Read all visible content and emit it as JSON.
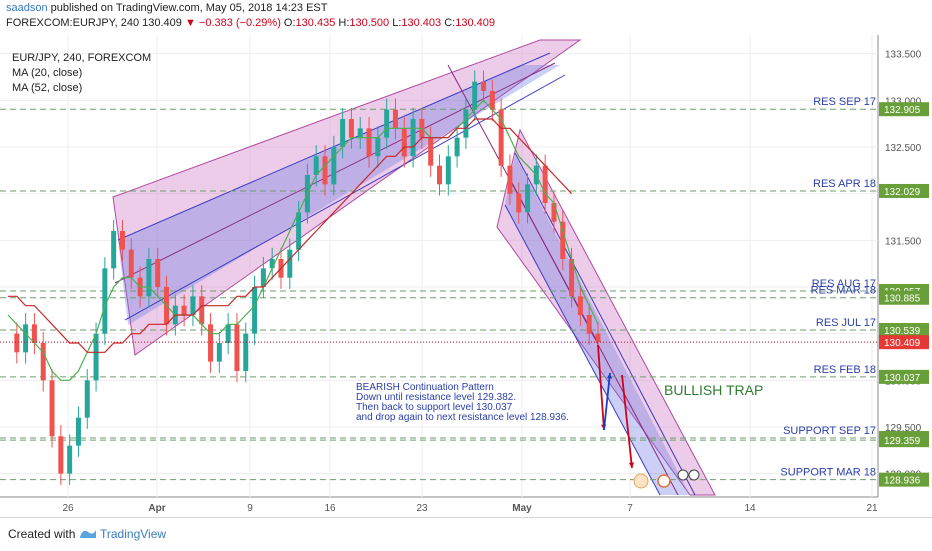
{
  "header": {
    "user": "saadson",
    "published": "published on TradingView.com, May 05, 2018 14:23 EST",
    "symbol": "FOREXCOM:EURJPY, 240",
    "last": "130.409",
    "change_arrow": "▼",
    "change": "−0.383 (−0.29%)",
    "open_label": "O:",
    "open": "130.435",
    "high_label": "H:",
    "high": "130.500",
    "low_label": "L:",
    "low": "130.403",
    "close_label": "C:",
    "close": "130.409"
  },
  "legend": {
    "title": "EUR/JPY, 240, FOREXCOM",
    "ma1": "MA (20, close)",
    "ma2": "MA (52, close)"
  },
  "footer": {
    "created_with": "Created with",
    "brand": "TradingView"
  },
  "colors": {
    "up": "#26a69a",
    "down": "#ef5350",
    "ma20": "#4caf50",
    "ma52": "#c62828",
    "level_line": "#6e9e6e",
    "label_text": "#2a3fa8",
    "channel_fill": "rgba(200,110,190,0.35)",
    "channel_mid": "rgba(110,120,230,0.35)"
  },
  "chart_data": {
    "type": "line",
    "title": "EUR/JPY, 240, FOREXCOM",
    "x_ticks": [
      "26",
      "Apr",
      "9",
      "16",
      "23",
      "May",
      "7",
      "14",
      "21"
    ],
    "y_ticks": [
      133.5,
      133.0,
      132.5,
      132.0,
      131.5,
      131.0,
      130.5,
      130.0,
      129.5,
      129.0
    ],
    "ylim": [
      128.75,
      133.7
    ],
    "current_price": 130.409,
    "levels": [
      {
        "name": "RES SEP 17",
        "value": 132.905
      },
      {
        "name": "RES APR 18",
        "value": 132.029
      },
      {
        "name": "RES AUG 17",
        "value": 130.957
      },
      {
        "name": "RES MAR 18",
        "value": 130.885
      },
      {
        "name": "RES JUL 17",
        "value": 130.539
      },
      {
        "name": "RES FEB 18",
        "value": 130.037
      },
      {
        "name": "SUPPORT SEP 17",
        "value": 129.382
      },
      {
        "name": "",
        "value": 129.359
      },
      {
        "name": "SUPPORT MAR 18",
        "value": 128.936
      }
    ],
    "series": [
      {
        "name": "EURJPY close",
        "values": [
          130.5,
          130.3,
          130.6,
          130.4,
          130.0,
          129.4,
          129.0,
          129.3,
          129.6,
          130.0,
          130.5,
          131.2,
          131.6,
          131.4,
          131.1,
          130.9,
          131.3,
          131.0,
          130.6,
          130.8,
          130.7,
          130.9,
          130.6,
          130.2,
          130.4,
          130.6,
          130.1,
          130.5,
          131.0,
          131.2,
          131.3,
          131.1,
          131.4,
          131.8,
          132.2,
          132.4,
          132.1,
          132.5,
          132.8,
          132.6,
          132.7,
          132.4,
          132.6,
          132.9,
          132.7,
          132.4,
          132.8,
          132.6,
          132.3,
          132.1,
          132.4,
          132.6,
          132.9,
          133.2,
          133.1,
          132.9,
          132.3,
          132.0,
          131.8,
          132.1,
          132.3,
          131.9,
          131.7,
          131.3,
          130.9,
          130.7,
          130.5,
          130.409
        ]
      },
      {
        "name": "MA (20, close)",
        "values": [
          130.7,
          130.6,
          130.5,
          130.4,
          130.3,
          130.1,
          130.0,
          130.0,
          130.1,
          130.3,
          130.5,
          130.8,
          131.0,
          131.1,
          131.1,
          131.0,
          131.0,
          130.9,
          130.8,
          130.7,
          130.7,
          130.7,
          130.6,
          130.5,
          130.5,
          130.6,
          130.6,
          130.7,
          130.8,
          131.0,
          131.2,
          131.4,
          131.6,
          131.8,
          132.0,
          132.2,
          132.3,
          132.4,
          132.5,
          132.6,
          132.6,
          132.6,
          132.6,
          132.7,
          132.7,
          132.7,
          132.7,
          132.7,
          132.6,
          132.6,
          132.6,
          132.7,
          132.8,
          132.9,
          133.0,
          132.9,
          132.8,
          132.6,
          132.4,
          132.3,
          132.2,
          132.0,
          131.9,
          131.6,
          131.3,
          131.0,
          130.8,
          130.6
        ]
      },
      {
        "name": "MA (52, close)",
        "values": [
          130.9,
          130.9,
          130.8,
          130.8,
          130.7,
          130.6,
          130.5,
          130.4,
          130.4,
          130.3,
          130.3,
          130.3,
          130.4,
          130.4,
          130.5,
          130.5,
          130.6,
          130.6,
          130.6,
          130.7,
          130.7,
          130.7,
          130.8,
          130.8,
          130.8,
          130.8,
          130.9,
          130.9,
          131.0,
          131.0,
          131.1,
          131.2,
          131.3,
          131.4,
          131.5,
          131.6,
          131.7,
          131.8,
          131.9,
          132.0,
          132.1,
          132.2,
          132.3,
          132.4,
          132.4,
          132.5,
          132.5,
          132.6,
          132.6,
          132.6,
          132.6,
          132.7,
          132.7,
          132.8,
          132.8,
          132.8,
          132.7,
          132.7,
          132.6,
          132.5,
          132.4,
          132.3,
          132.2,
          132.1,
          132.0,
          null,
          null,
          null
        ]
      }
    ],
    "annotations": [
      {
        "text": "BEARISH Continuation Pattern"
      },
      {
        "text": "Down until resistance level 129.382."
      },
      {
        "text": "Then back to support level 130.037"
      },
      {
        "text": "and drop again to next resistance level 128.936."
      },
      {
        "text": "BULLISH TRAP"
      }
    ],
    "grid": true,
    "legend_position": "top-left"
  }
}
